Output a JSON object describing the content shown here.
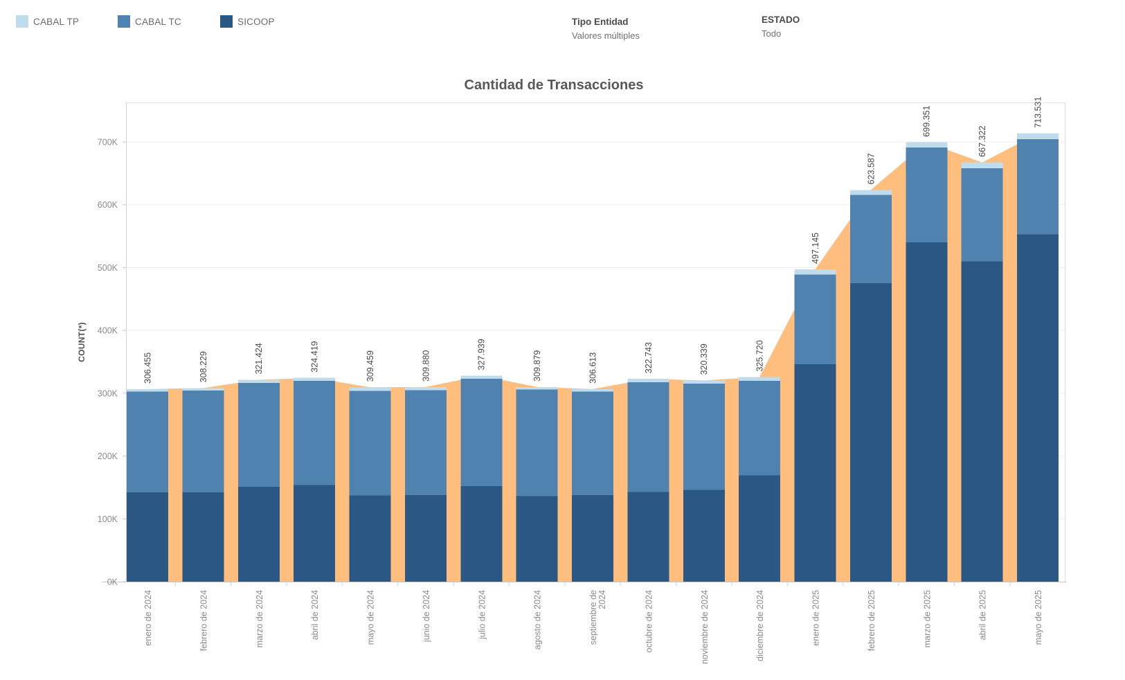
{
  "header": {
    "legend": {
      "items": [
        {
          "label": "CABAL TP",
          "color": "#BFDCEE"
        },
        {
          "label": "CABAL TC",
          "color": "#5082B0"
        },
        {
          "label": "SICOOP",
          "color": "#2A5783"
        }
      ]
    },
    "filters": [
      {
        "title": "Tipo Entidad",
        "value": "Valores múltiples"
      },
      {
        "title": "ESTADO",
        "value": "Todo"
      }
    ]
  },
  "chart_data": {
    "type": "bar",
    "stacked": true,
    "title": "Cantidad de Transacciones",
    "xlabel": "",
    "ylabel": "COUNT(*)",
    "grid": true,
    "ylim": [
      0,
      750000
    ],
    "yticks": [
      "0K",
      "100K",
      "200K",
      "300K",
      "400K",
      "500K",
      "600K",
      "700K"
    ],
    "ytick_values": [
      0,
      100000,
      200000,
      300000,
      400000,
      500000,
      600000,
      700000
    ],
    "categories": [
      "enero de 2024",
      "febrero de 2024",
      "marzo de 2024",
      "abril de 2024",
      "mayo de 2024",
      "junio de 2024",
      "julio de 2024",
      "agosto de 2024",
      "septiembre de 2024",
      "octubre de 2024",
      "noviembre de 2024",
      "diciembre de 2024",
      "enero de 2025",
      "febrero de 2025",
      "marzo de 2025",
      "abril de 2025",
      "mayo de 2025"
    ],
    "totals": [
      306455,
      308229,
      321424,
      324419,
      309459,
      309880,
      327939,
      309879,
      306613,
      322743,
      320339,
      325720,
      497145,
      623587,
      699351,
      667322,
      713531
    ],
    "total_labels": [
      "306.455",
      "308.229",
      "321.424",
      "324.419",
      "309.459",
      "309.880",
      "327.939",
      "309.879",
      "306.613",
      "322.743",
      "320.339",
      "325.720",
      "497.145",
      "623.587",
      "699.351",
      "667.322",
      "713.531"
    ],
    "series": [
      {
        "name": "SICOOP",
        "color": "#2A5783",
        "values": [
          142000,
          142000,
          151000,
          154000,
          137000,
          138000,
          152000,
          136000,
          138000,
          143000,
          146000,
          169000,
          346000,
          475000,
          540000,
          510000,
          553000
        ]
      },
      {
        "name": "CABAL TC",
        "color": "#5082B0",
        "values": [
          160455,
          162229,
          165424,
          165419,
          166959,
          166880,
          170939,
          169879,
          164613,
          174243,
          169339,
          150720,
          143145,
          140587,
          151351,
          148322,
          151531
        ]
      },
      {
        "name": "CABAL TP",
        "color": "#BFDCEE",
        "values": [
          4000,
          4000,
          5000,
          5000,
          5500,
          5000,
          5000,
          4000,
          4000,
          5500,
          5000,
          6000,
          8000,
          8000,
          8000,
          9000,
          9000
        ]
      }
    ],
    "area_series": {
      "name": "Total",
      "color": "#FFBE7E"
    }
  }
}
